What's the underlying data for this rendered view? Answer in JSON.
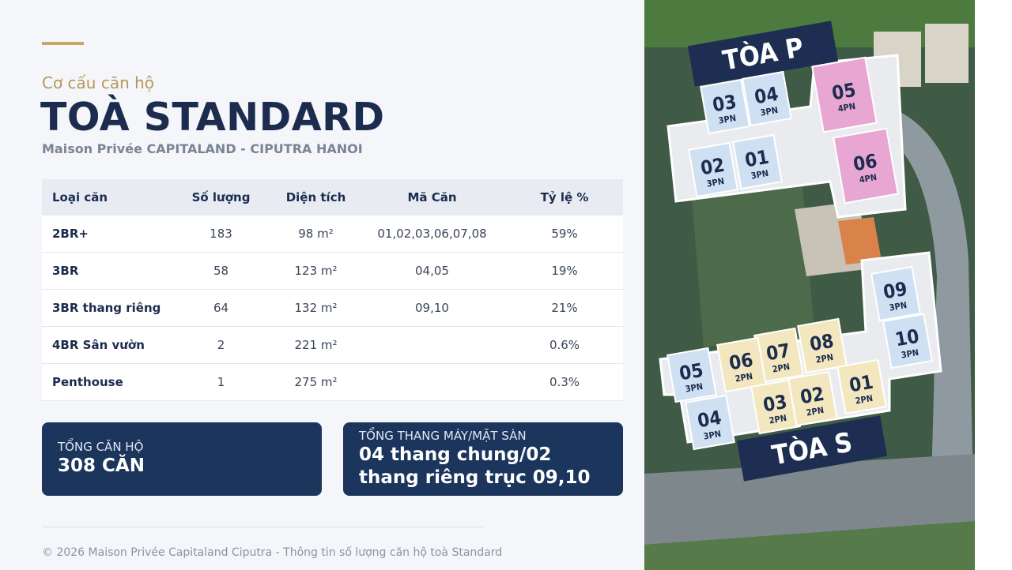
{
  "header": {
    "eyebrow": "Cơ cấu căn hộ",
    "title": "TOÀ STANDARD",
    "subtitle": "Maison Privée  CAPITALAND - CIPUTRA HANOI"
  },
  "table": {
    "headers": [
      "Loại căn",
      "Số lượng",
      "Diện tích",
      "Mã Căn",
      "Tỷ lệ %"
    ],
    "rows": [
      [
        "2BR+",
        "183",
        "98 m²",
        "01,02,03,06,07,08",
        "59%"
      ],
      [
        "3BR",
        "58",
        "123 m²",
        "04,05",
        "19%"
      ],
      [
        "3BR thang riêng",
        "64",
        "132 m²",
        "09,10",
        "21%"
      ],
      [
        "4BR Sân vườn",
        "2",
        "221 m²",
        null,
        "0.6%"
      ],
      [
        "Penthouse",
        "1",
        "275 m²",
        null,
        "0.3%"
      ]
    ]
  },
  "cards": [
    {
      "label": "TỔNG CĂN HỘ",
      "value": "308 CĂN"
    },
    {
      "label": "TỔNG THANG MÁY/MẶT SÀN",
      "value": "04 thang chung/02 thang riêng trục 09,10"
    }
  ],
  "footer": "© 2026 Maison Privée  Capitaland Ciputra - Thông tin số lượng căn hộ toà Standard",
  "map": {
    "towers": [
      {
        "name": "TÒA P",
        "units": [
          {
            "number": "03",
            "type": "3PN"
          },
          {
            "number": "04",
            "type": "3PN"
          },
          {
            "number": "05",
            "type": "4PN"
          },
          {
            "number": "06",
            "type": "4PN"
          },
          {
            "number": "02",
            "type": "3PN"
          },
          {
            "number": "01",
            "type": "3PN"
          }
        ]
      },
      {
        "name": "TÒA S",
        "units": [
          {
            "number": "09",
            "type": "3PN"
          },
          {
            "number": "10",
            "type": "3PN"
          },
          {
            "number": "08",
            "type": "2PN"
          },
          {
            "number": "07",
            "type": "2PN"
          },
          {
            "number": "06",
            "type": "2PN"
          },
          {
            "number": "05",
            "type": "3PN"
          },
          {
            "number": "04",
            "type": "3PN"
          },
          {
            "number": "03",
            "type": "2PN"
          },
          {
            "number": "02",
            "type": "2PN"
          },
          {
            "number": "01",
            "type": "2PN"
          }
        ]
      }
    ]
  }
}
